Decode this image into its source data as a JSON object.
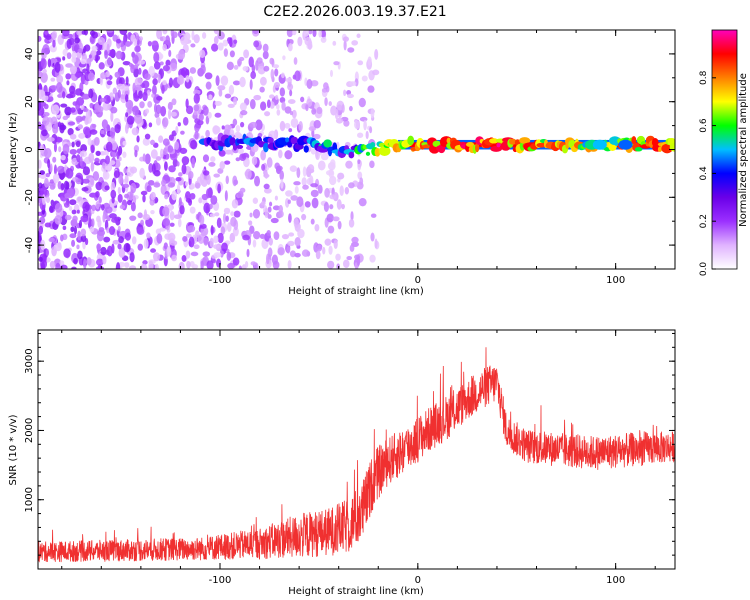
{
  "title": "C2E2.2026.003.19.37.E21",
  "chart_data": [
    {
      "type": "heatmap",
      "xlabel": "Height of straight line (km)",
      "ylabel": "Frequency (Hz)",
      "xlim": [
        -192,
        130
      ],
      "ylim": [
        -50,
        50
      ],
      "xticks": [
        -100,
        0,
        100
      ],
      "xtick_labels": [
        "-100",
        "0",
        "100"
      ],
      "yticks": [
        -40,
        -20,
        0,
        20,
        40
      ],
      "ytick_labels": [
        "-40",
        "-20",
        "0",
        "20",
        "40"
      ],
      "colorbar": {
        "label": "Normalized spectral amplitude",
        "range": [
          0,
          1
        ],
        "ticks": [
          0.0,
          0.2,
          0.4,
          0.6,
          0.8
        ],
        "tick_labels": [
          "0.0",
          "0.2",
          "0.4",
          "0.6",
          "0.8"
        ],
        "colors": [
          "#ffffff",
          "#e0b3ff",
          "#9b30ff",
          "#6a00e8",
          "#0000ff",
          "#00bfff",
          "#00ff00",
          "#ffff00",
          "#ff8000",
          "#ff0000",
          "#ff00bb"
        ]
      },
      "band": {
        "description": "narrow carrier line near 2 Hz",
        "points": [
          {
            "x": -108,
            "freq": 3.0,
            "amp": 0.35
          },
          {
            "x": -90,
            "freq": 3.0,
            "amp": 0.4
          },
          {
            "x": -70,
            "freq": 2.5,
            "amp": 0.45
          },
          {
            "x": -50,
            "freq": 2.0,
            "amp": 0.5
          },
          {
            "x": -35,
            "freq": -1.0,
            "amp": 0.5
          },
          {
            "x": -25,
            "freq": 0.0,
            "amp": 0.6
          },
          {
            "x": -10,
            "freq": 1.5,
            "amp": 0.75
          },
          {
            "x": 0,
            "freq": 2.0,
            "amp": 0.85
          },
          {
            "x": 40,
            "freq": 2.0,
            "amp": 0.9
          },
          {
            "x": 90,
            "freq": 2.0,
            "amp": 0.7
          },
          {
            "x": 130,
            "freq": 2.0,
            "amp": 0.9
          }
        ]
      },
      "noise_region": {
        "x_range": [
          -192,
          -30
        ],
        "freq_range": [
          -50,
          50
        ],
        "amp": 0.2
      }
    },
    {
      "type": "line",
      "color": "#f03030",
      "xlabel": "Height of straight line (km)",
      "ylabel": "SNR (10 * v/v)",
      "xlim": [
        -192,
        130
      ],
      "ylim": [
        0,
        3450
      ],
      "xticks": [
        -100,
        0,
        100
      ],
      "xtick_labels": [
        "-100",
        "0",
        "100"
      ],
      "yticks": [
        1000,
        2000,
        3000
      ],
      "ytick_labels": [
        "1000",
        "2000",
        "3000"
      ],
      "envelope": {
        "x": [
          -192,
          -150,
          -110,
          -80,
          -60,
          -45,
          -35,
          -28,
          -22,
          -15,
          -5,
          5,
          15,
          25,
          35,
          40,
          45,
          55,
          70,
          90,
          110,
          130
        ],
        "baseline": [
          200,
          220,
          240,
          300,
          380,
          430,
          500,
          700,
          1200,
          1450,
          1650,
          1900,
          2100,
          2350,
          2550,
          2600,
          1900,
          1700,
          1650,
          1600,
          1650,
          1700
        ],
        "spread": [
          300,
          320,
          340,
          450,
          650,
          700,
          800,
          900,
          800,
          700,
          700,
          650,
          650,
          600,
          600,
          600,
          500,
          500,
          500,
          500,
          500,
          450
        ]
      }
    }
  ]
}
